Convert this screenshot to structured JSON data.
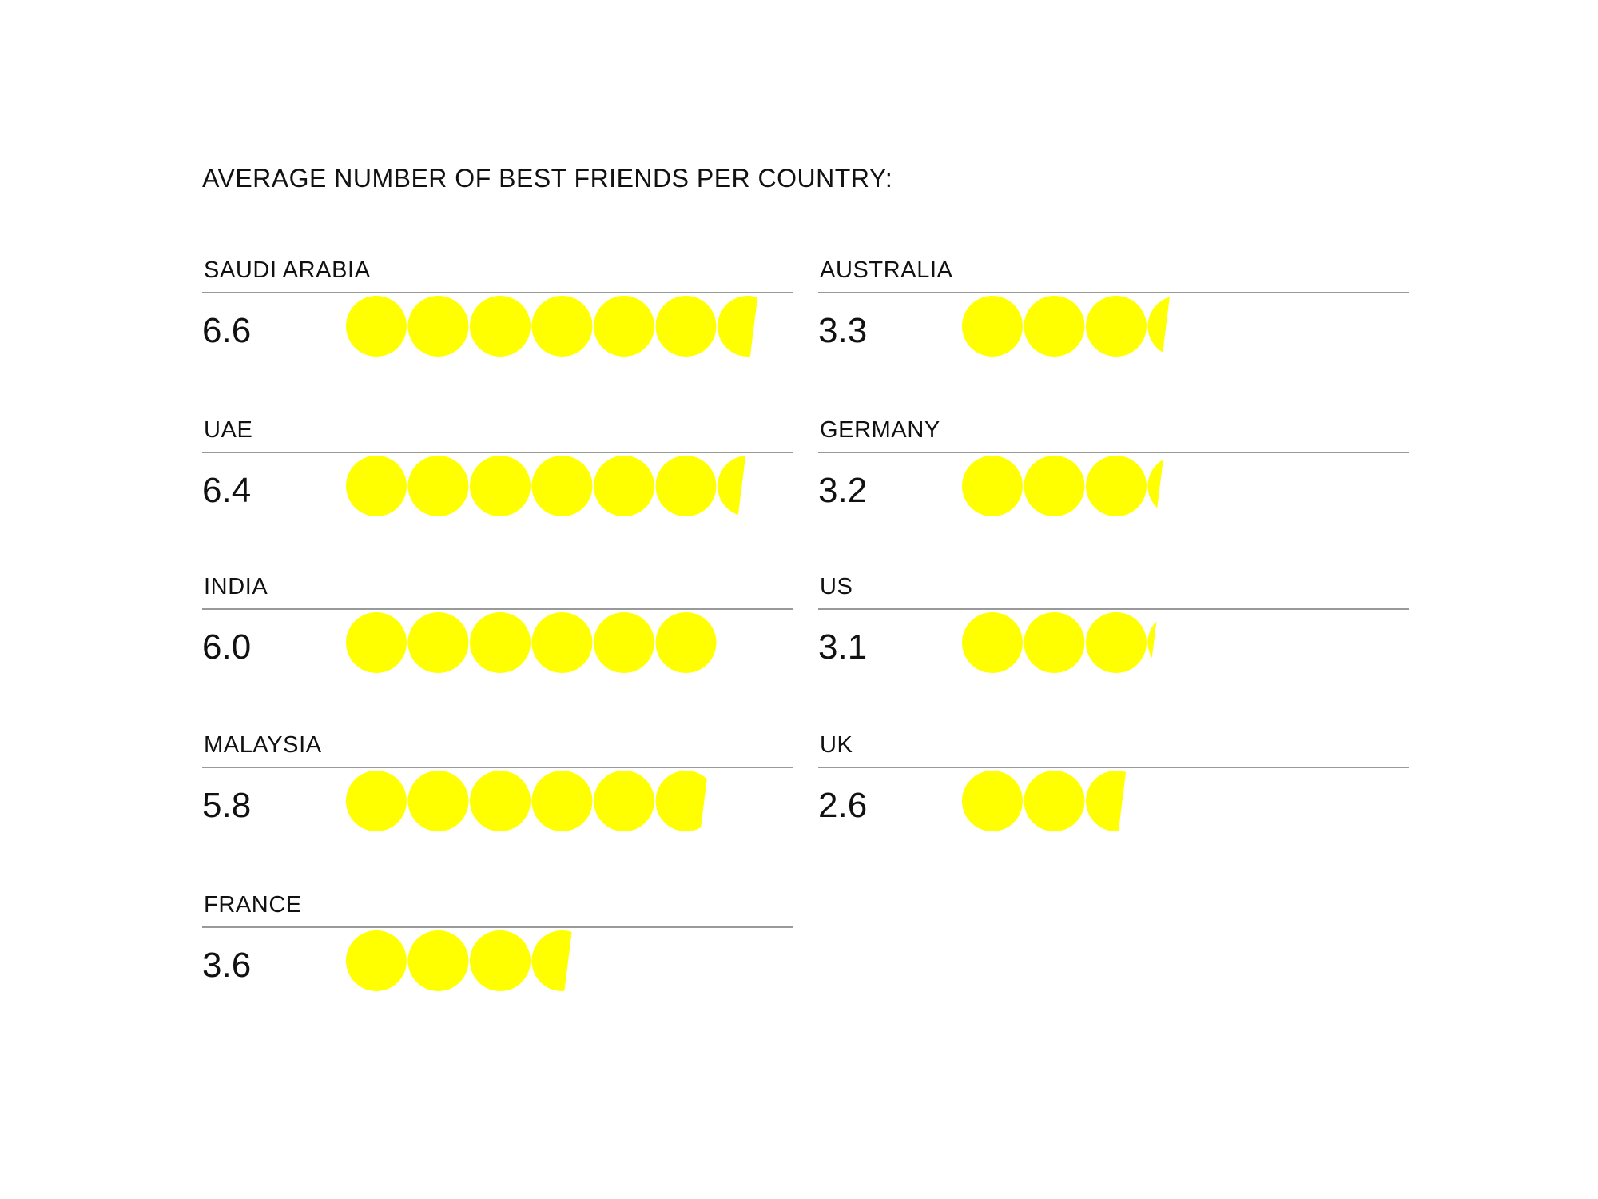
{
  "chart_data": {
    "type": "pictograph",
    "title": "AVERAGE NUMBER OF BEST FRIENDS PER COUNTRY:",
    "unit_symbol": "circle",
    "color": "#FFFF00",
    "categories": [
      "SAUDI ARABIA",
      "UAE",
      "INDIA",
      "MALAYSIA",
      "FRANCE",
      "AUSTRALIA",
      "GERMANY",
      "US",
      "UK"
    ],
    "values": [
      6.6,
      6.4,
      6.0,
      5.8,
      3.6,
      3.3,
      3.2,
      3.1,
      2.6
    ],
    "value_labels": [
      "6.6",
      "6.4",
      "6.0",
      "5.8",
      "3.6",
      "3.3",
      "3.2",
      "3.1",
      "2.6"
    ]
  }
}
